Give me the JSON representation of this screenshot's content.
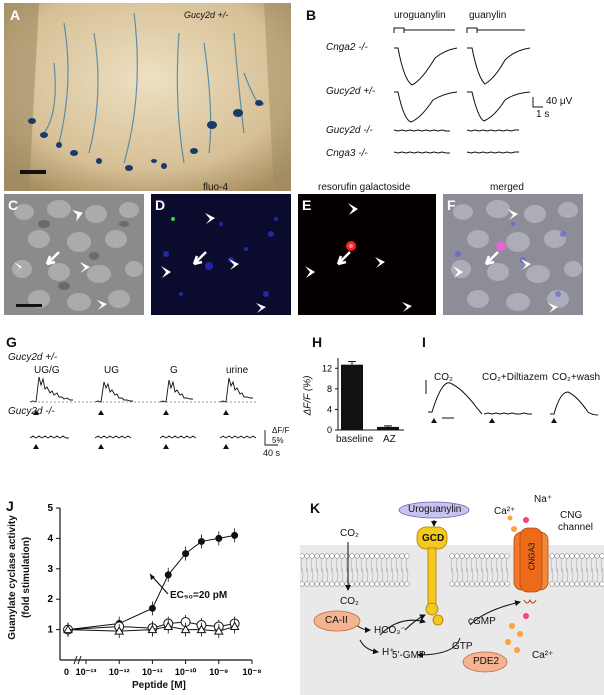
{
  "panels": {
    "A": {
      "letter": "A",
      "genotype": "Gucy2d +/-"
    },
    "B": {
      "letter": "B",
      "col_uroguanylin": "uroguanylin",
      "col_guanylin": "guanylin",
      "rows": [
        "Cnga2 -/-",
        "Gucy2d +/-",
        "Gucy2d -/-",
        "Cnga3 -/-"
      ],
      "scale_v": "40 μV",
      "scale_t": "1 s"
    },
    "C": {
      "letter": "C"
    },
    "D": {
      "letter": "D",
      "title": "fluo-4"
    },
    "E": {
      "letter": "E",
      "title": "resorufin galactoside"
    },
    "F": {
      "letter": "F",
      "title": "merged"
    },
    "G": {
      "letter": "G",
      "row1": "Gucy2d +/-",
      "row2": "Gucy2d -/-",
      "stimuli": [
        "UG/G",
        "UG",
        "G",
        "urine"
      ],
      "scale_y": "ΔF/F",
      "scale_y2": "5%",
      "scale_t": "40 s"
    },
    "H": {
      "letter": "H",
      "ylabel": "ΔF/F (%)",
      "yticks": [
        "0",
        "4",
        "8",
        "12"
      ],
      "categories": [
        "baseline",
        "AZ"
      ]
    },
    "I": {
      "letter": "I",
      "conditions": [
        "CO₂",
        "CO₂+Diltiazem",
        "CO₂+wash"
      ]
    },
    "J": {
      "letter": "J",
      "ylabel1": "Guanylate cyclase activity",
      "ylabel2": "(fold stimulation)",
      "xlabel": "Peptide  [M]",
      "ec50": "EC₅₀=20 pM",
      "yticks": [
        "1",
        "2",
        "3",
        "4",
        "5"
      ],
      "xticks": [
        "10⁻¹³",
        "10⁻¹²",
        "10⁻¹¹",
        "10⁻¹⁰",
        "10⁻⁹",
        "10⁻⁸"
      ],
      "xbreak": "0"
    },
    "K": {
      "letter": "K",
      "uroguanylin": "Uroguanylin",
      "gcd": "GCD",
      "cnga3": "CNGA3",
      "na": "Na⁺",
      "ca_in": "Ca²⁺",
      "ca_out": "Ca²⁺",
      "cng1": "CNG",
      "cng2": "channel",
      "co2_top": "CO₂",
      "co2_bottom": "CO₂",
      "ca2": "CA-II",
      "hco3": "HCO₃⁻",
      "h": "H⁺",
      "gtp": "GTP",
      "cgmp": "cGMP",
      "pde2": "PDE2",
      "gmp": "5'-GMP"
    }
  },
  "chart_data": [
    {
      "panel": "H",
      "type": "bar",
      "categories": [
        "baseline",
        "AZ"
      ],
      "values": [
        12.7,
        0.6
      ],
      "errors": [
        0.6,
        0.2
      ],
      "ylabel": "ΔF/F (%)",
      "ylim": [
        0,
        14
      ]
    },
    {
      "panel": "J",
      "type": "line",
      "xlabel": "Peptide [M]",
      "ylabel": "Guanylate cyclase activity (fold stimulation)",
      "x": [
        "0",
        "1e-12",
        "1e-11",
        "3e-11",
        "1e-10",
        "3e-10",
        "1e-9",
        "3e-9",
        "1e-8"
      ],
      "series": [
        {
          "marker": "filled",
          "values": [
            1.0,
            1.2,
            1.7,
            2.8,
            3.5,
            3.9,
            4.0,
            4.1,
            null
          ]
        },
        {
          "marker": "open-circle",
          "values": [
            1.0,
            1.1,
            1.05,
            1.2,
            1.25,
            1.15,
            1.1,
            1.2,
            null
          ]
        },
        {
          "marker": "open-triangle",
          "values": [
            1.0,
            0.95,
            1.0,
            1.1,
            1.0,
            1.0,
            0.95,
            1.1,
            null
          ]
        }
      ],
      "ylim": [
        0,
        5
      ],
      "annotation": "EC₅₀=20 pM"
    }
  ],
  "colors": {
    "blue": "#1b2bd0",
    "red": "#e21818",
    "gcd_yellow": "#f2c31c",
    "cng_orange": "#ef6a1e",
    "pde_orange": "#f4b492",
    "uroguanylin_purple": "#b9b3e6"
  }
}
